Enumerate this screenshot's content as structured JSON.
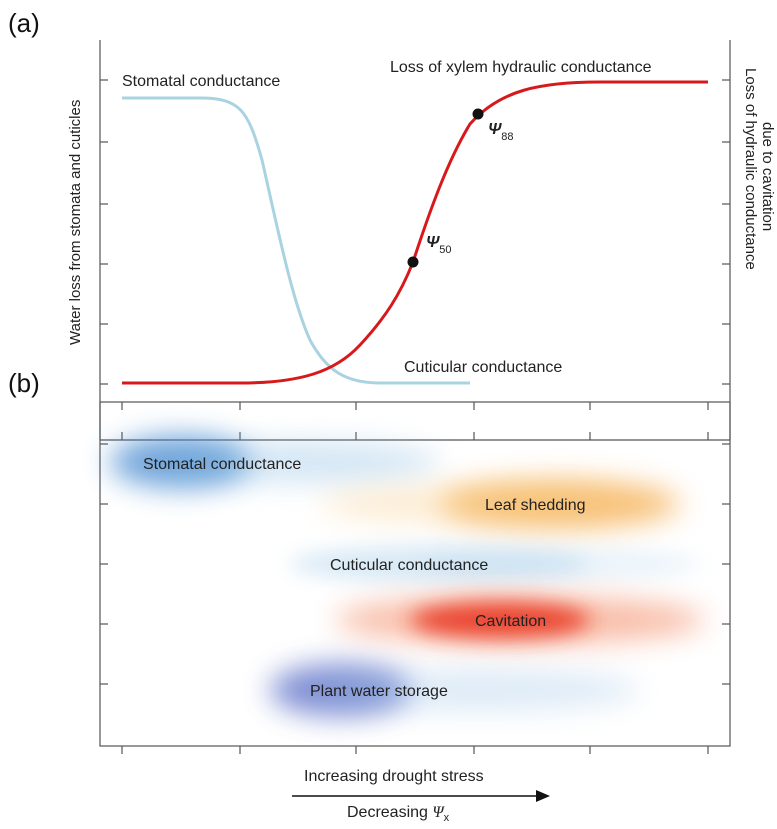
{
  "panel_a": {
    "letter": "(a)",
    "left_axis_label": "Water loss from stomata and cuticles",
    "right_axis_label_line1": "Loss of hydraulic conductance",
    "right_axis_label_line2": "due to cavitation",
    "stomatal_label": "Stomatal conductance",
    "cuticular_label": "Cuticular conductance",
    "xylem_label": "Loss of xylem hydraulic conductance",
    "psi50_symbol": "Ψ",
    "psi50_sub": "50",
    "psi88_symbol": "Ψ",
    "psi88_sub": "88",
    "colors": {
      "stomatal": "#a9d3e0",
      "xylem": "#d7191c"
    }
  },
  "panel_b": {
    "letter": "(b)",
    "bands": [
      {
        "label": "Stomatal conductance",
        "color": "#3f86cf"
      },
      {
        "label": "Leaf shedding",
        "color": "#f4a53a"
      },
      {
        "label": "Cuticular conductance",
        "color": "#7fb6e0"
      },
      {
        "label": "Cavitation",
        "color": "#e8321e"
      },
      {
        "label": "Plant water storage",
        "color": "#4a5fc1"
      }
    ]
  },
  "x_axis": {
    "caption_top": "Increasing drought stress",
    "caption_bottom_text": "Decreasing ",
    "caption_bottom_symbol": "Ψ",
    "caption_bottom_sub": "x"
  }
}
